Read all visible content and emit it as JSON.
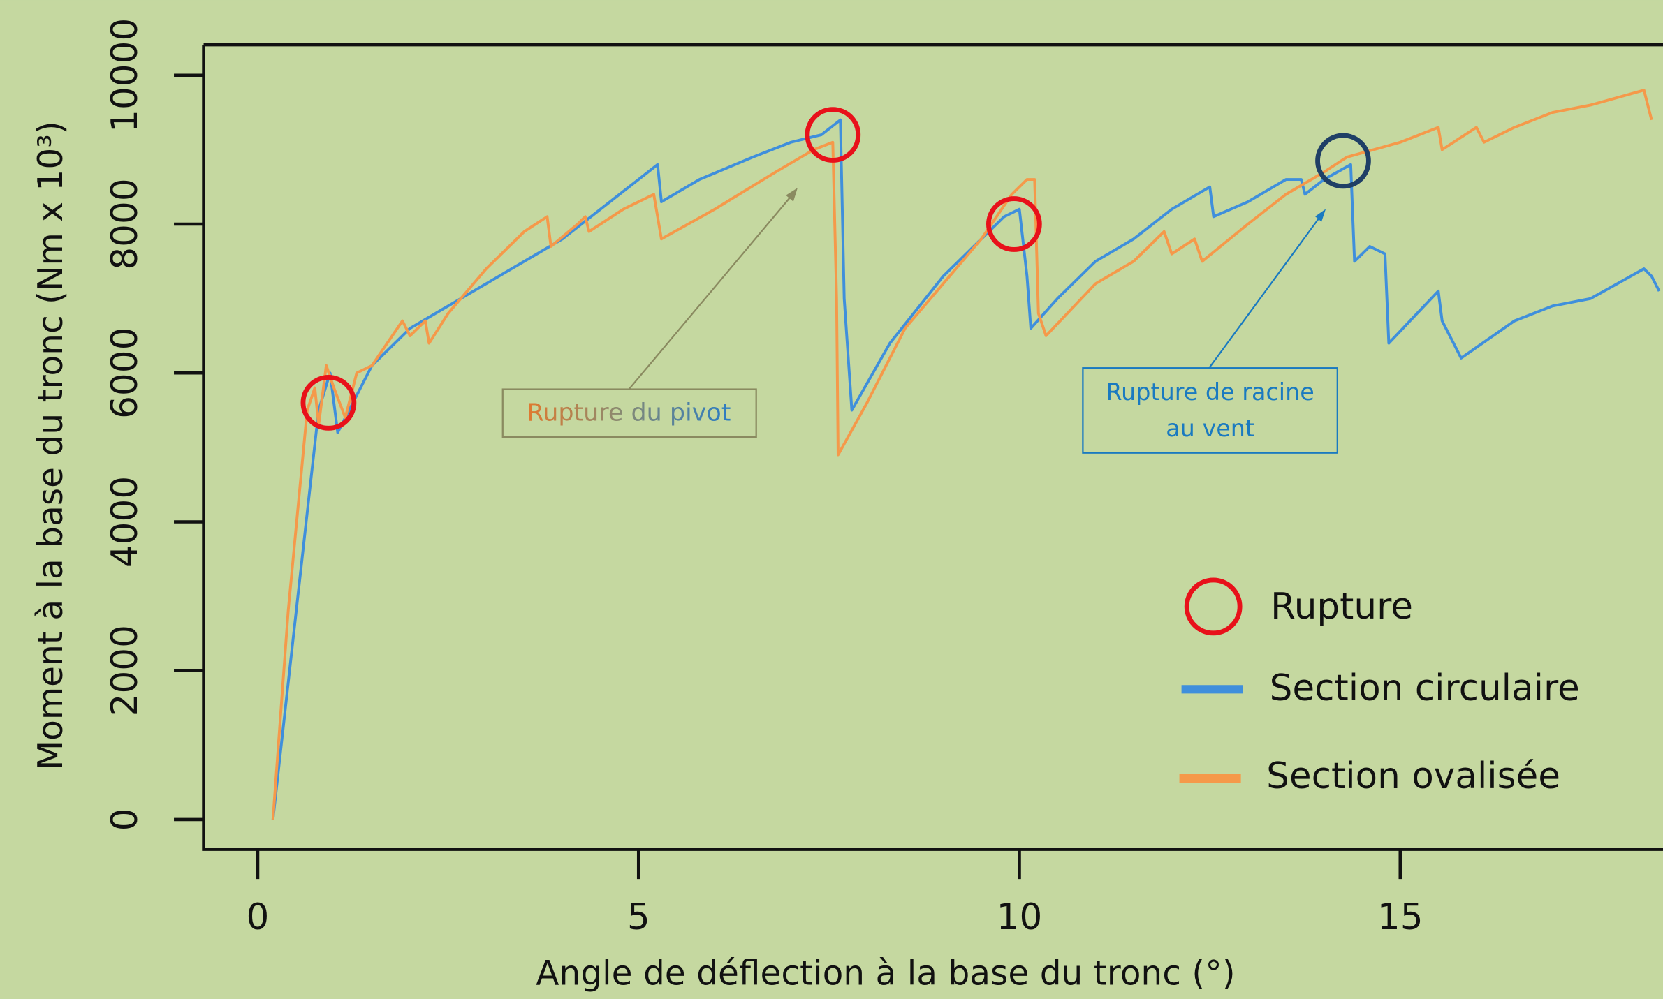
{
  "chart_data": {
    "type": "line",
    "x_label": "Angle de déflection à la base du tronc (°)",
    "y_label": "Moment à la base du tronc (Nm x 10³)",
    "xlim": [
      -0.71,
      18.45
    ],
    "ylim": [
      -400,
      10410
    ],
    "xticks": [
      0,
      5,
      10,
      15
    ],
    "yticks": [
      0,
      2000,
      4000,
      6000,
      8000,
      10000
    ],
    "series": [
      {
        "name": "Section circulaire",
        "color": "#3f8fdc",
        "x": [
          0.2,
          0.8,
          0.95,
          1.05,
          1.3,
          1.5,
          2.0,
          2.5,
          3.0,
          3.5,
          4.0,
          4.5,
          5.0,
          5.25,
          5.3,
          5.8,
          6.5,
          7.0,
          7.4,
          7.65,
          7.7,
          7.8,
          8.3,
          9.0,
          9.5,
          9.8,
          10.0,
          10.1,
          10.15,
          10.5,
          11.0,
          11.5,
          12.0,
          12.5,
          12.55,
          13.0,
          13.5,
          13.7,
          13.75,
          14.0,
          14.35,
          14.4,
          14.6,
          14.8,
          14.85,
          15.5,
          15.55,
          15.8,
          16.5,
          17.0,
          17.5,
          18.2,
          18.3,
          18.4
        ],
        "values": [
          0,
          5500,
          6000,
          5200,
          5700,
          6100,
          6600,
          6900,
          7200,
          7500,
          7800,
          8200,
          8600,
          8800,
          8300,
          8600,
          8900,
          9100,
          9200,
          9400,
          7000,
          5500,
          6400,
          7300,
          7800,
          8100,
          8200,
          7300,
          6600,
          7000,
          7500,
          7800,
          8200,
          8500,
          8100,
          8300,
          8600,
          8600,
          8400,
          8600,
          8800,
          7500,
          7700,
          7600,
          6400,
          7100,
          6700,
          6200,
          6700,
          6900,
          7000,
          7400,
          7300,
          7100
        ]
      },
      {
        "name": "Section ovalisée",
        "color": "#f5994a",
        "x": [
          0.2,
          0.4,
          0.65,
          0.75,
          0.8,
          0.9,
          1.0,
          1.15,
          1.3,
          1.5,
          1.9,
          2.0,
          2.2,
          2.25,
          2.5,
          3.0,
          3.5,
          3.8,
          3.85,
          4.2,
          4.3,
          4.35,
          4.8,
          5.2,
          5.3,
          6.0,
          6.8,
          7.3,
          7.55,
          7.6,
          7.62,
          8.0,
          8.5,
          9.0,
          9.5,
          9.9,
          10.1,
          10.2,
          10.25,
          10.35,
          11.0,
          11.5,
          11.9,
          12.0,
          12.3,
          12.4,
          13.0,
          13.5,
          14.0,
          14.3,
          15.0,
          15.5,
          15.55,
          16.0,
          16.1,
          16.5,
          17.0,
          17.5,
          18.2,
          18.3
        ],
        "values": [
          0,
          2800,
          5500,
          5800,
          5300,
          6100,
          5800,
          5400,
          6000,
          6100,
          6700,
          6500,
          6700,
          6400,
          6800,
          7400,
          7900,
          8100,
          7700,
          8000,
          8100,
          7900,
          8200,
          8400,
          7800,
          8200,
          8700,
          9000,
          9100,
          7000,
          4900,
          5600,
          6600,
          7200,
          7800,
          8400,
          8600,
          8600,
          6800,
          6500,
          7200,
          7500,
          7900,
          7600,
          7800,
          7500,
          8000,
          8400,
          8700,
          8900,
          9100,
          9300,
          9000,
          9300,
          9100,
          9300,
          9500,
          9600,
          9800,
          9400
        ]
      }
    ],
    "ruptures": {
      "name": "Rupture",
      "color": "#e8111a",
      "points": [
        {
          "x": 0.93,
          "y": 5600,
          "color": "#e8111a"
        },
        {
          "x": 7.55,
          "y": 9200,
          "color": "#e8111a"
        },
        {
          "x": 9.93,
          "y": 8000,
          "color": "#e8111a"
        },
        {
          "x": 14.25,
          "y": 8850,
          "color": "#1f3f66"
        }
      ]
    },
    "annotations": [
      {
        "text": "Rupture du pivot"
      },
      {
        "lines": [
          "Rupture de racine",
          "au vent"
        ]
      }
    ]
  }
}
